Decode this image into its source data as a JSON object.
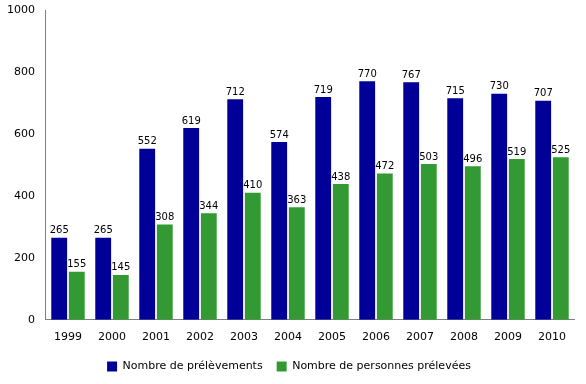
{
  "chart_data": {
    "type": "bar",
    "categories": [
      "1999",
      "2000",
      "2001",
      "2002",
      "2003",
      "2004",
      "2005",
      "2006",
      "2007",
      "2008",
      "2009",
      "2010"
    ],
    "series": [
      {
        "name": "Nombre de prélèvements",
        "color": "#000099",
        "values": [
          265,
          265,
          552,
          619,
          712,
          574,
          719,
          770,
          767,
          715,
          730,
          707
        ]
      },
      {
        "name": "Nombre de personnes prélevées",
        "color": "#339933",
        "values": [
          155,
          145,
          308,
          344,
          410,
          363,
          438,
          472,
          503,
          496,
          519,
          525
        ]
      }
    ],
    "ylim": [
      0,
      1000
    ],
    "yticks": [
      0,
      200,
      400,
      600,
      800,
      1000
    ],
    "grid": false,
    "legend": "bottom",
    "data_labels": true
  }
}
